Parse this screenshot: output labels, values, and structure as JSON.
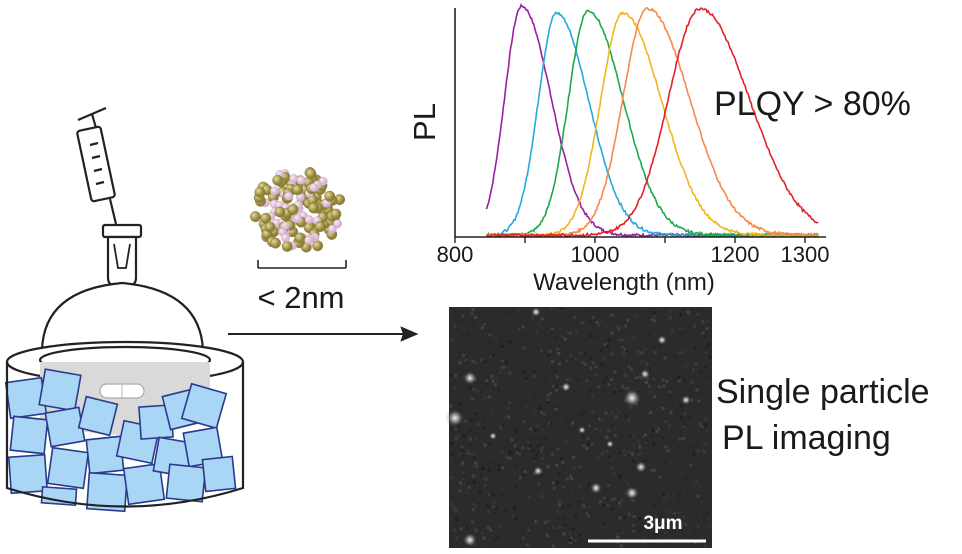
{
  "size_label": "< 2nm",
  "plqy_label": "PLQY > 80%",
  "imaging_label_line1": "Single particle",
  "imaging_label_line2": "PL imaging",
  "scale_bar_label": "3μm",
  "chart_data": {
    "type": "line",
    "xlabel": "Wavelength (nm)",
    "ylabel": "PL",
    "xlim": [
      800,
      1330
    ],
    "ylim": [
      0,
      1.0
    ],
    "x_ticks": [
      800,
      1000,
      1200,
      1300
    ],
    "x_tick_labels": [
      "800",
      "1000",
      "1200",
      "1300"
    ],
    "grid": false,
    "legend": "none",
    "series": [
      {
        "color": "#9b1fa0",
        "peak_nm": 895,
        "width_left": 24,
        "width_right": 42,
        "peak": 1.0
      },
      {
        "color": "#27a8e0",
        "peak_nm": 945,
        "width_left": 26,
        "width_right": 46,
        "peak": 0.97
      },
      {
        "color": "#1fa84a",
        "peak_nm": 990,
        "width_left": 28,
        "width_right": 50,
        "peak": 0.98
      },
      {
        "color": "#f2b522",
        "peak_nm": 1040,
        "width_left": 32,
        "width_right": 55,
        "peak": 0.97
      },
      {
        "color": "#f58a4a",
        "peak_nm": 1075,
        "width_left": 35,
        "width_right": 60,
        "peak": 0.99
      },
      {
        "color": "#e4202a",
        "peak_nm": 1150,
        "width_left": 45,
        "width_right": 70,
        "peak": 0.99
      }
    ]
  }
}
